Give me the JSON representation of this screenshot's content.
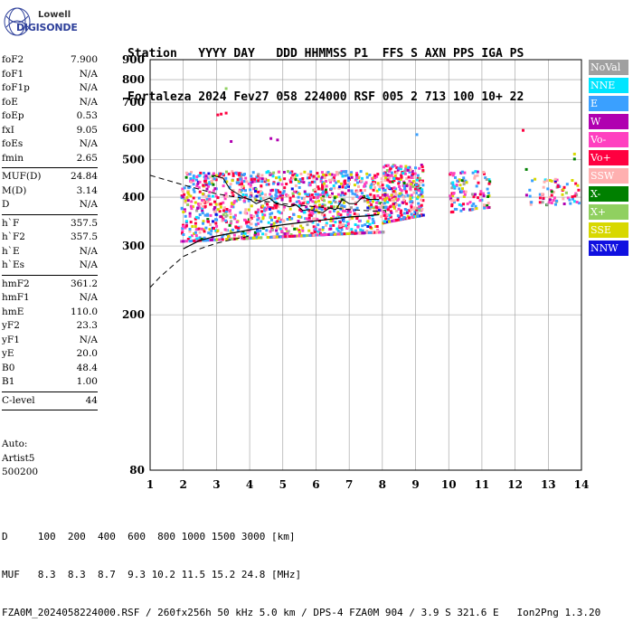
{
  "logo": {
    "top": "Lowell",
    "brand": "DIGISONDE"
  },
  "header": {
    "line1": "Station   YYYY DAY   DDD HHMMSS P1  FFS S AXN PPS IGA PS",
    "line2": "Fortaleza 2024 Fev27 058 224000 RSF 005 2 713 100 10+ 22"
  },
  "params": {
    "group1": [
      {
        "name": "foF2",
        "value": "7.900"
      },
      {
        "name": "foF1",
        "value": "N/A"
      },
      {
        "name": "foF1p",
        "value": "N/A"
      },
      {
        "name": "foE",
        "value": "N/A"
      },
      {
        "name": "foEp",
        "value": "0.53"
      },
      {
        "name": "fxI",
        "value": "9.05"
      },
      {
        "name": "foEs",
        "value": "N/A"
      },
      {
        "name": "fmin",
        "value": "2.65"
      }
    ],
    "group2": [
      {
        "name": "MUF(D)",
        "value": "24.84"
      },
      {
        "name": "M(D)",
        "value": "3.14"
      },
      {
        "name": "D",
        "value": "N/A"
      }
    ],
    "group3": [
      {
        "name": "h`F",
        "value": "357.5"
      },
      {
        "name": "h`F2",
        "value": "357.5"
      },
      {
        "name": "h`E",
        "value": "N/A"
      },
      {
        "name": "h`Es",
        "value": "N/A"
      }
    ],
    "group4": [
      {
        "name": "hmF2",
        "value": "361.2"
      },
      {
        "name": "hmF1",
        "value": "N/A"
      },
      {
        "name": "hmE",
        "value": "110.0"
      },
      {
        "name": "yF2",
        "value": "23.3"
      },
      {
        "name": "yF1",
        "value": "N/A"
      },
      {
        "name": "yE",
        "value": "20.0"
      },
      {
        "name": "B0",
        "value": "48.4"
      },
      {
        "name": "B1",
        "value": "1.00"
      }
    ],
    "group5": [
      {
        "name": "C-level",
        "value": "44"
      }
    ]
  },
  "auto": {
    "line1": "Auto:",
    "line2": "Artist5",
    "line3": "500200"
  },
  "legend": [
    {
      "label": "NoVal",
      "color": "#a0a0a0"
    },
    {
      "label": "NNE",
      "color": "#00e5ff"
    },
    {
      "label": "E",
      "color": "#3aa0ff"
    },
    {
      "label": "W",
      "color": "#b000b0"
    },
    {
      "label": "Vo-",
      "color": "#ff40c0"
    },
    {
      "label": "Vo+",
      "color": "#ff0040"
    },
    {
      "label": "SSW",
      "color": "#ffb0b0"
    },
    {
      "label": "X-",
      "color": "#008000"
    },
    {
      "label": "X+",
      "color": "#90d060"
    },
    {
      "label": "SSE",
      "color": "#d8d800"
    },
    {
      "label": "NNW",
      "color": "#1010e0"
    }
  ],
  "footer": {
    "line1": "D     100  200  400  600  800 1000 1500 3000 [km]",
    "line2": "MUF   8.3  8.3  8.7  9.3 10.2 11.5 15.2 24.8 [MHz]",
    "line3": "FZA0M_2024058224000.RSF / 260fx256h 50 kHz 5.0 km / DPS-4 FZA0M 904 / 3.9 S 321.6 E   Ion2Png 1.3.20"
  },
  "chart_data": {
    "type": "scatter",
    "xlim": [
      1,
      14
    ],
    "ylim": [
      80,
      900
    ],
    "x_ticks": [
      "1",
      "2",
      "3",
      "4",
      "5",
      "6",
      "7",
      "8",
      "9",
      "10",
      "11",
      "12",
      "13",
      "14"
    ],
    "y_ticks": [
      "80",
      "200",
      "300",
      "400",
      "500",
      "600",
      "700",
      "800",
      "900"
    ],
    "y_tick_values": [
      80,
      200,
      300,
      400,
      500,
      600,
      700,
      800,
      900
    ],
    "y_scale": "log",
    "grid": true,
    "profile_curve": {
      "x": [
        2.0,
        2.5,
        3.0,
        3.5,
        4.0,
        4.5,
        5.0,
        5.5,
        6.0,
        6.5,
        7.0,
        7.5,
        7.9
      ],
      "y": [
        295,
        310,
        318,
        324,
        330,
        335,
        340,
        344,
        348,
        352,
        356,
        358,
        361
      ]
    },
    "trace_curve": {
      "x": [
        2.9,
        3.0,
        3.2,
        3.4,
        3.6,
        3.8,
        4.0,
        4.2,
        4.4,
        4.6,
        4.8,
        5.0,
        5.2,
        5.4,
        5.6,
        5.8,
        6.0,
        6.2,
        6.4,
        6.6,
        6.8,
        7.0,
        7.2,
        7.4,
        7.6,
        7.9
      ],
      "y": [
        455,
        452,
        448,
        420,
        410,
        400,
        395,
        385,
        392,
        398,
        385,
        382,
        378,
        382,
        370,
        372,
        368,
        365,
        375,
        372,
        395,
        385,
        385,
        400,
        395,
        395
      ]
    },
    "dashed_upper": {
      "x": [
        1.0,
        2.0,
        3.0,
        4.0,
        5.0,
        6.0,
        7.0,
        7.9
      ],
      "y": [
        455,
        430,
        408,
        395,
        385,
        378,
        372,
        368
      ]
    },
    "dashed_lower": {
      "x": [
        1.0,
        1.3,
        1.7,
        2.0,
        2.5,
        3.0,
        3.5,
        4.0
      ],
      "y": [
        235,
        250,
        268,
        282,
        295,
        305,
        312,
        318
      ]
    },
    "clusters": [
      {
        "x0": 1.9,
        "x1": 8.0,
        "y0": 290,
        "y1": 470,
        "n": 1400
      },
      {
        "x0": 8.0,
        "x1": 9.2,
        "y0": 330,
        "y1": 490,
        "n": 350
      },
      {
        "x0": 10.0,
        "x1": 11.2,
        "y0": 360,
        "y1": 470,
        "n": 110
      },
      {
        "x0": 12.3,
        "x1": 13.9,
        "y0": 380,
        "y1": 450,
        "n": 70
      }
    ],
    "scatter_outliers": [
      {
        "x": 3.25,
        "y": 765,
        "c": "#90d060"
      },
      {
        "x": 3.0,
        "y": 655,
        "c": "#ff0040"
      },
      {
        "x": 3.1,
        "y": 658,
        "c": "#ff0040"
      },
      {
        "x": 3.25,
        "y": 662,
        "c": "#ff0040"
      },
      {
        "x": 3.4,
        "y": 560,
        "c": "#b000b0"
      },
      {
        "x": 4.6,
        "y": 570,
        "c": "#b000b0"
      },
      {
        "x": 4.8,
        "y": 565,
        "c": "#b000b0"
      },
      {
        "x": 9.0,
        "y": 583,
        "c": "#3aa0ff"
      },
      {
        "x": 12.2,
        "y": 598,
        "c": "#ff0040"
      },
      {
        "x": 12.3,
        "y": 475,
        "c": "#008000"
      },
      {
        "x": 13.75,
        "y": 520,
        "c": "#d8d800"
      },
      {
        "x": 13.75,
        "y": 505,
        "c": "#008000"
      }
    ]
  }
}
